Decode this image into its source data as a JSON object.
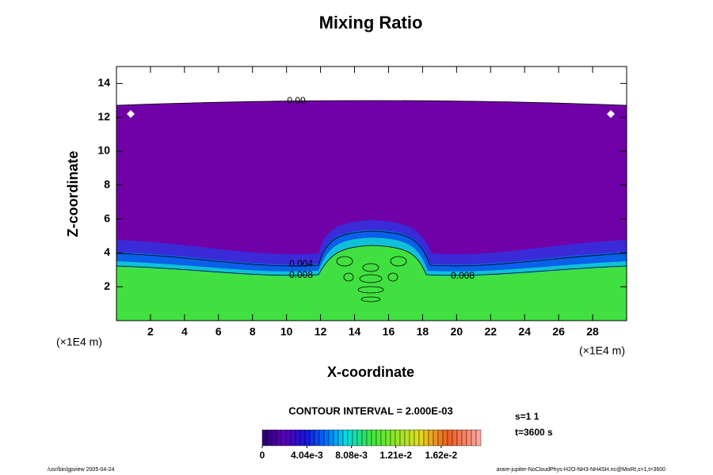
{
  "chart_data": {
    "type": "contour",
    "title": "Mixing Ratio",
    "xlabel": "X-coordinate",
    "ylabel": "Z-coordinate",
    "x_unit": "(×1E4 m)",
    "y_unit": "(×1E4 m)",
    "xlim": [
      0,
      30
    ],
    "ylim": [
      0,
      15
    ],
    "xticks": [
      2,
      4,
      6,
      8,
      10,
      12,
      14,
      16,
      18,
      20,
      22,
      24,
      26,
      28
    ],
    "yticks": [
      2,
      4,
      6,
      8,
      10,
      12,
      14
    ],
    "contour_labels": [
      "0.00",
      "0.004",
      "0.008",
      "0.008"
    ],
    "contour_interval": "CONTOUR INTERVAL = 2.000E-03",
    "clim": [
      0,
      0.0198
    ],
    "colorbar_ticks": [
      0,
      {
        "value": 0.00404,
        "label": "4.04e-3"
      },
      {
        "value": 0.00808,
        "label": "8.08e-3"
      },
      {
        "value": 0.0121,
        "label": "1.21e-2"
      },
      {
        "value": 0.0162,
        "label": "1.62e-2"
      }
    ],
    "annotations": [
      "s=1 1",
      "t=3600 s",
      "/usr/bin/gpview 2005-04-24",
      "arare-jupiter-NoCloudPhys-H2O-NH3-NH4SH.nc@MixRt,s=1,t=3600"
    ]
  }
}
